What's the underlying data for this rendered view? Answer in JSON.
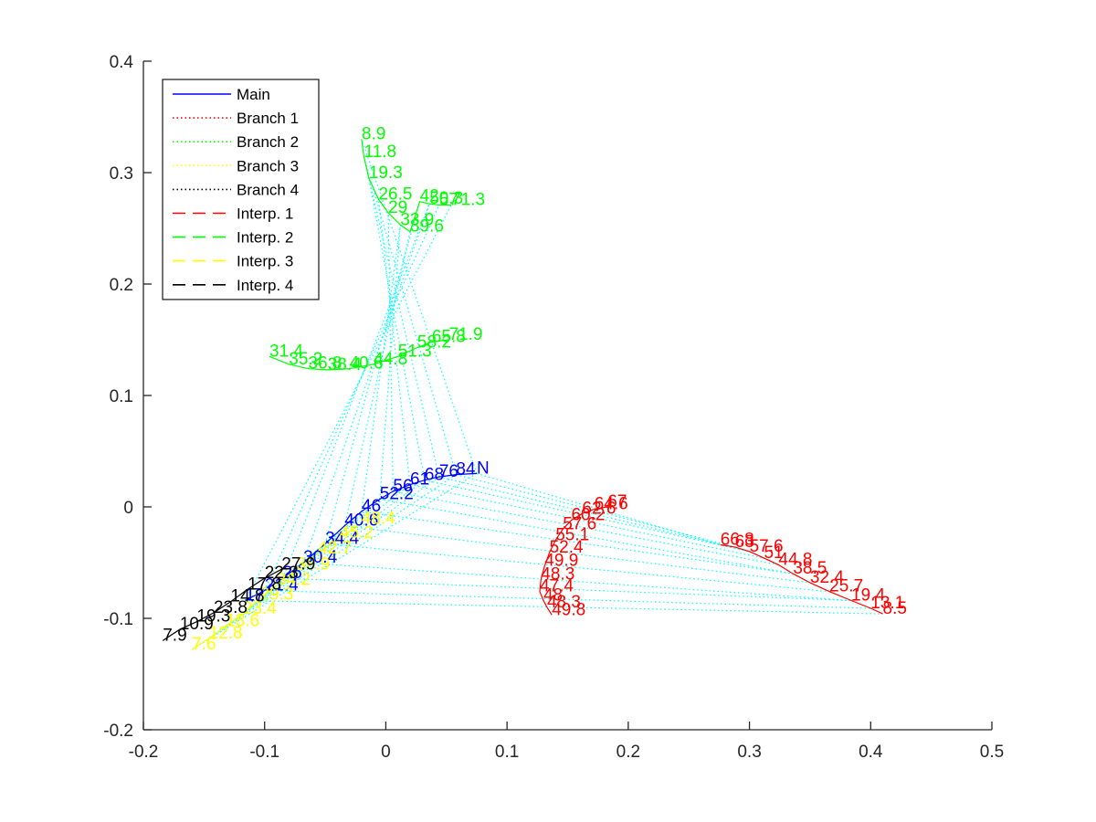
{
  "chart_data": {
    "type": "line",
    "xlim": [
      -0.2,
      0.5
    ],
    "ylim": [
      -0.2,
      0.4
    ],
    "xticks": [
      "-0.2",
      "-0.1",
      "0",
      "0.1",
      "0.2",
      "0.3",
      "0.4",
      "0.5"
    ],
    "yticks": [
      "-0.2",
      "-0.1",
      "0",
      "0.1",
      "0.2",
      "0.3",
      "0.4"
    ],
    "xtick_values": [
      -0.2,
      -0.1,
      0,
      0.1,
      0.2,
      0.3,
      0.4,
      0.5
    ],
    "ytick_values": [
      -0.2,
      -0.1,
      0,
      0.1,
      0.2,
      0.3,
      0.4
    ],
    "grid": false,
    "legend_position": "top-left",
    "legend": [
      {
        "label": "Main",
        "color": "#0000ff",
        "style": "solid"
      },
      {
        "label": "Branch 1",
        "color": "#ff0000",
        "style": "dotted"
      },
      {
        "label": "Branch 2",
        "color": "#00ff00",
        "style": "dotted"
      },
      {
        "label": "Branch 3",
        "color": "#ffff00",
        "style": "dotted"
      },
      {
        "label": "Branch 4",
        "color": "#000000",
        "style": "dotted"
      },
      {
        "label": "Interp. 1",
        "color": "#ff0000",
        "style": "dashed"
      },
      {
        "label": "Interp. 2",
        "color": "#00ff00",
        "style": "dashed"
      },
      {
        "label": "Interp. 3",
        "color": "#ffff00",
        "style": "dashed"
      },
      {
        "label": "Interp. 4",
        "color": "#000000",
        "style": "dashed"
      }
    ],
    "connector_color": "#00ffff",
    "series": [
      {
        "name": "Main",
        "color": "#0000ff",
        "points": [
          {
            "x": 0.075,
            "y": 0.03,
            "label": "N"
          },
          {
            "x": 0.058,
            "y": 0.029,
            "label": "84"
          },
          {
            "x": 0.044,
            "y": 0.027,
            "label": "76"
          },
          {
            "x": 0.032,
            "y": 0.024,
            "label": "68"
          },
          {
            "x": 0.02,
            "y": 0.02,
            "label": "61"
          },
          {
            "x": 0.006,
            "y": 0.014,
            "label": "56"
          },
          {
            "x": -0.005,
            "y": 0.007,
            "label": "52.2"
          },
          {
            "x": -0.02,
            "y": -0.004,
            "label": "46"
          },
          {
            "x": -0.034,
            "y": -0.017,
            "label": "40.6"
          },
          {
            "x": -0.05,
            "y": -0.033,
            "label": "34.4"
          },
          {
            "x": -0.068,
            "y": -0.05,
            "label": "30.4"
          },
          {
            "x": -0.085,
            "y": -0.064,
            "label": "26"
          },
          {
            "x": -0.1,
            "y": -0.075,
            "label": "21.4"
          },
          {
            "x": -0.116,
            "y": -0.084,
            "label": "17"
          }
        ]
      },
      {
        "name": "Branch 1 (outer)",
        "color": "#ff0000",
        "points": [
          {
            "x": 0.276,
            "y": -0.034,
            "label": "66.8"
          },
          {
            "x": 0.288,
            "y": -0.036,
            "label": "63"
          },
          {
            "x": 0.3,
            "y": -0.04,
            "label": "57.6"
          },
          {
            "x": 0.312,
            "y": -0.046,
            "label": "51"
          },
          {
            "x": 0.324,
            "y": -0.052,
            "label": "44.8"
          },
          {
            "x": 0.336,
            "y": -0.06,
            "label": "38.5"
          },
          {
            "x": 0.35,
            "y": -0.068,
            "label": "32.4"
          },
          {
            "x": 0.366,
            "y": -0.076,
            "label": "25.7"
          },
          {
            "x": 0.384,
            "y": -0.084,
            "label": "19.4"
          },
          {
            "x": 0.4,
            "y": -0.091,
            "label": "13.1"
          },
          {
            "x": 0.41,
            "y": -0.096,
            "label": "8.5"
          }
        ]
      },
      {
        "name": "Branch 1 (inner)",
        "color": "#ff0000",
        "points": [
          {
            "x": 0.183,
            "y": 0.0,
            "label": "67"
          },
          {
            "x": 0.172,
            "y": -0.002,
            "label": "64.6"
          },
          {
            "x": 0.162,
            "y": -0.006,
            "label": "62.6"
          },
          {
            "x": 0.153,
            "y": -0.012,
            "label": "60.2"
          },
          {
            "x": 0.146,
            "y": -0.02,
            "label": "57.6"
          },
          {
            "x": 0.14,
            "y": -0.03,
            "label": "55.1"
          },
          {
            "x": 0.135,
            "y": -0.041,
            "label": "52.4"
          },
          {
            "x": 0.131,
            "y": -0.053,
            "label": "49.9"
          },
          {
            "x": 0.128,
            "y": -0.065,
            "label": "48.3"
          },
          {
            "x": 0.127,
            "y": -0.076,
            "label": "47.4"
          },
          {
            "x": 0.13,
            "y": -0.084,
            "label": "48"
          },
          {
            "x": 0.133,
            "y": -0.09,
            "label": "48.3"
          },
          {
            "x": 0.137,
            "y": -0.097,
            "label": "49.8"
          }
        ]
      },
      {
        "name": "Branch 2 (upper)",
        "color": "#00ff00",
        "points": [
          {
            "x": -0.02,
            "y": 0.33,
            "label": "8.9"
          },
          {
            "x": -0.018,
            "y": 0.314,
            "label": "11.8"
          },
          {
            "x": -0.014,
            "y": 0.295,
            "label": "19.3"
          },
          {
            "x": -0.006,
            "y": 0.276,
            "label": "26.5"
          },
          {
            "x": 0.002,
            "y": 0.264,
            "label": "29"
          },
          {
            "x": 0.012,
            "y": 0.253,
            "label": "33.9"
          },
          {
            "x": 0.02,
            "y": 0.247,
            "label": "39.6"
          },
          {
            "x": 0.028,
            "y": 0.274,
            "label": "42"
          },
          {
            "x": 0.036,
            "y": 0.272,
            "label": "50.3"
          },
          {
            "x": 0.044,
            "y": 0.271,
            "label": "57"
          },
          {
            "x": 0.054,
            "y": 0.271,
            "label": "71.3"
          }
        ]
      },
      {
        "name": "Branch 2 (lower)",
        "color": "#00ff00",
        "points": [
          {
            "x": -0.096,
            "y": 0.135,
            "label": "31.4"
          },
          {
            "x": -0.08,
            "y": 0.128,
            "label": "35.2"
          },
          {
            "x": -0.064,
            "y": 0.124,
            "label": "36.8"
          },
          {
            "x": -0.048,
            "y": 0.123,
            "label": "38.4"
          },
          {
            "x": -0.03,
            "y": 0.124,
            "label": "40.6"
          },
          {
            "x": -0.01,
            "y": 0.128,
            "label": "44.8"
          },
          {
            "x": 0.01,
            "y": 0.135,
            "label": "51.3"
          },
          {
            "x": 0.026,
            "y": 0.143,
            "label": "58.2"
          },
          {
            "x": 0.038,
            "y": 0.148,
            "label": "65.8"
          },
          {
            "x": 0.052,
            "y": 0.15,
            "label": "71.9"
          }
        ]
      },
      {
        "name": "Branch 3",
        "color": "#ffff00",
        "points": [
          {
            "x": -0.16,
            "y": -0.128,
            "label": "7.6"
          },
          {
            "x": -0.146,
            "y": -0.118,
            "label": "12.8"
          },
          {
            "x": -0.132,
            "y": -0.107,
            "label": "18.6"
          },
          {
            "x": -0.118,
            "y": -0.096,
            "label": "23.4"
          },
          {
            "x": -0.104,
            "y": -0.083,
            "label": "29.3"
          },
          {
            "x": -0.09,
            "y": -0.07,
            "label": "34.2"
          },
          {
            "x": -0.074,
            "y": -0.056,
            "label": "38.9"
          },
          {
            "x": -0.056,
            "y": -0.042,
            "label": "42.7"
          },
          {
            "x": -0.038,
            "y": -0.028,
            "label": "45.2"
          },
          {
            "x": -0.02,
            "y": -0.015,
            "label": "48.4"
          }
        ]
      },
      {
        "name": "Branch 4",
        "color": "#000000",
        "points": [
          {
            "x": -0.184,
            "y": -0.12,
            "label": "7.9"
          },
          {
            "x": -0.17,
            "y": -0.11,
            "label": "10.9"
          },
          {
            "x": -0.156,
            "y": -0.103,
            "label": "19.3"
          },
          {
            "x": -0.142,
            "y": -0.095,
            "label": "23.8"
          },
          {
            "x": -0.128,
            "y": -0.085,
            "label": "14.8"
          },
          {
            "x": -0.114,
            "y": -0.074,
            "label": "17.8"
          },
          {
            "x": -0.1,
            "y": -0.064,
            "label": "22.3"
          },
          {
            "x": -0.086,
            "y": -0.056,
            "label": "27.9"
          }
        ]
      }
    ],
    "connectors": [
      {
        "from": "Main",
        "to": "Branch 2 (upper)"
      },
      {
        "from": "Main",
        "to": "Branch 1 (outer)"
      },
      {
        "from": "Main",
        "to": "Branch 3"
      }
    ]
  }
}
